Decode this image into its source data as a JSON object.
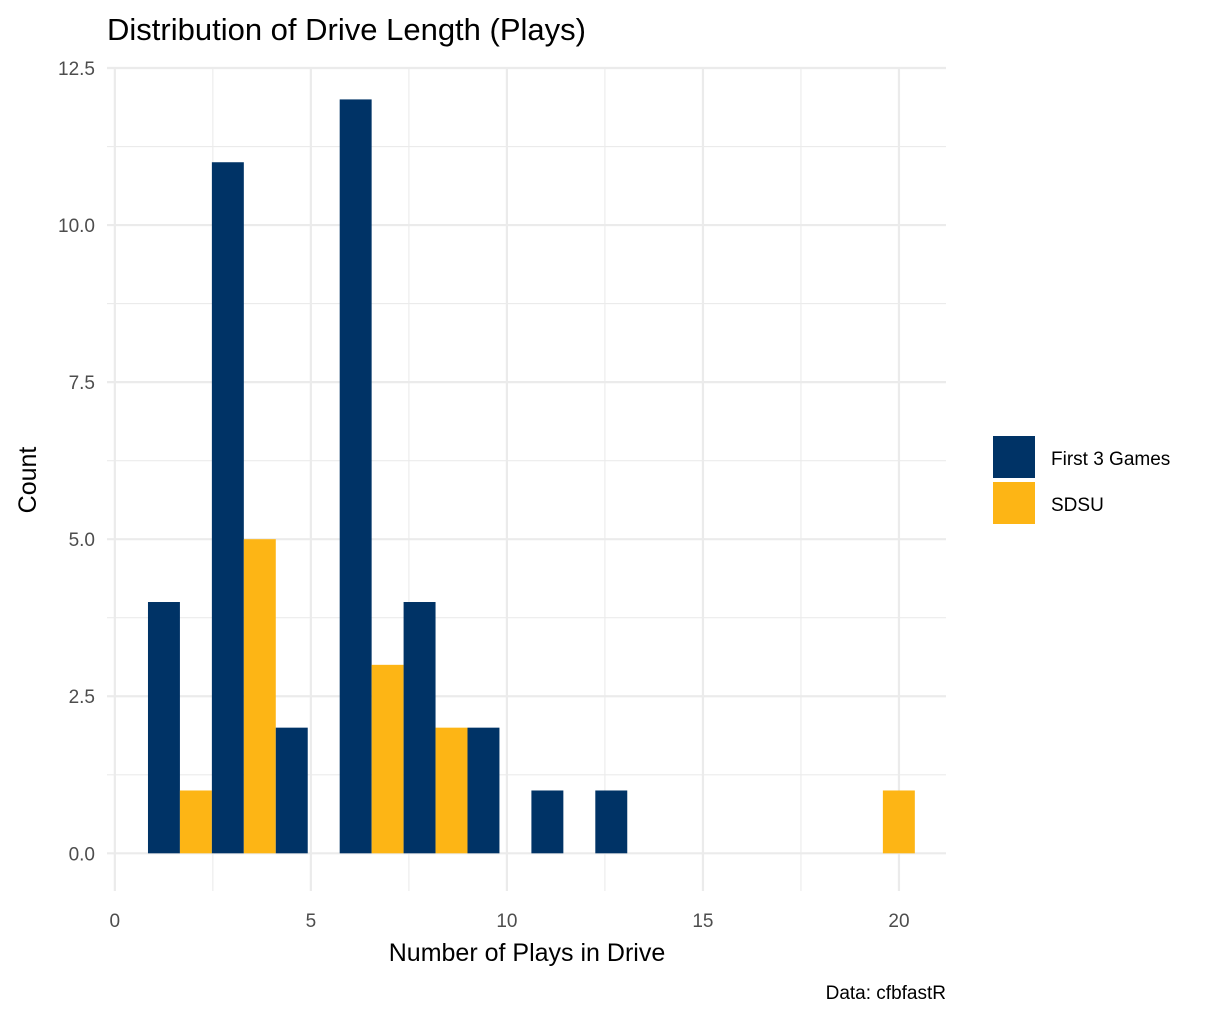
{
  "chart_data": {
    "type": "bar",
    "title": "Distribution of Drive Length (Plays)",
    "xlabel": "Number of Plays in Drive",
    "ylabel": "Count",
    "caption": "Data: cfbfastR",
    "xlim": [
      -0.2,
      21.2
    ],
    "ylim": [
      -0.6,
      12.5
    ],
    "x_ticks": [
      0,
      5,
      10,
      15,
      20
    ],
    "x_tick_labels": [
      "0",
      "5",
      "10",
      "15",
      "20"
    ],
    "y_ticks": [
      0.0,
      2.5,
      5.0,
      7.5,
      10.0,
      12.5
    ],
    "y_tick_labels": [
      "0.0",
      "2.5",
      "5.0",
      "7.5",
      "10.0",
      "12.5"
    ],
    "bin_width": 1.63,
    "bin_centers": [
      1.66,
      3.29,
      4.92,
      6.55,
      8.18,
      9.81,
      11.44,
      13.07,
      14.7,
      16.33,
      17.96,
      19.59
    ],
    "series": [
      {
        "name": "First 3 Games",
        "color": "#003366",
        "values": [
          4,
          11,
          2,
          12,
          4,
          2,
          1,
          1,
          0,
          0,
          0,
          0
        ]
      },
      {
        "name": "SDSU",
        "color": "#FDB515",
        "values": [
          1,
          5,
          0,
          3,
          2,
          0,
          0,
          0,
          0,
          0,
          0,
          1
        ]
      }
    ],
    "grid": true,
    "legend_position": "right"
  }
}
